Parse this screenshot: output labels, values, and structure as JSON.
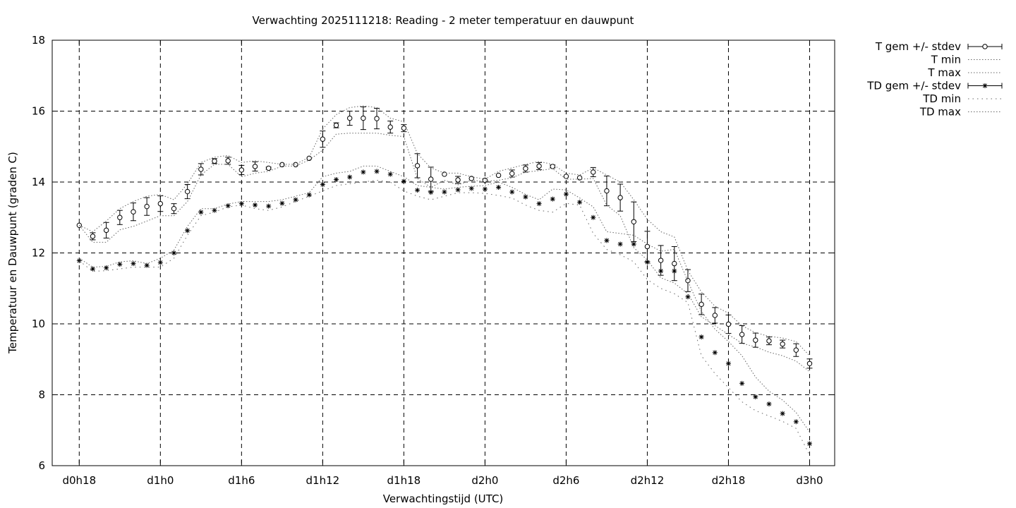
{
  "chart_data": {
    "type": "line",
    "title": "Verwachting 2025111218: Reading - 2 meter temperatuur en dauwpunt",
    "xlabel": "Verwachtingstijd (UTC)",
    "ylabel": "Temperatuur en Dauwpunt (graden C)",
    "xlim": [
      18,
      75
    ],
    "ylim": [
      6,
      18
    ],
    "x_ticks": [
      {
        "value": 18,
        "label": "d0h18"
      },
      {
        "value": 24,
        "label": "d1h0"
      },
      {
        "value": 30,
        "label": "d1h6"
      },
      {
        "value": 36,
        "label": "d1h12"
      },
      {
        "value": 42,
        "label": "d1h18"
      },
      {
        "value": 48,
        "label": "d2h0"
      },
      {
        "value": 54,
        "label": "d2h6"
      },
      {
        "value": 60,
        "label": "d2h12"
      },
      {
        "value": 66,
        "label": "d2h18"
      },
      {
        "value": 72,
        "label": "d3h0"
      }
    ],
    "y_ticks": [
      {
        "value": 6,
        "label": "6"
      },
      {
        "value": 8,
        "label": "8"
      },
      {
        "value": 10,
        "label": "10"
      },
      {
        "value": 12,
        "label": "12"
      },
      {
        "value": 14,
        "label": "14"
      },
      {
        "value": 16,
        "label": "16"
      },
      {
        "value": 18,
        "label": "18"
      }
    ],
    "grid": true,
    "legend_position": "outside-top-right",
    "x": [
      18,
      19,
      20,
      21,
      22,
      23,
      24,
      25,
      26,
      27,
      28,
      29,
      30,
      31,
      32,
      33,
      34,
      35,
      36,
      37,
      38,
      39,
      40,
      41,
      42,
      43,
      44,
      45,
      46,
      47,
      48,
      49,
      50,
      51,
      52,
      53,
      54,
      55,
      56,
      57,
      58,
      59,
      60,
      61,
      62,
      63,
      64,
      65,
      66,
      67,
      68,
      69,
      70,
      71,
      72
    ],
    "series": [
      {
        "name": "T gem +/- stdev",
        "marker": "circle",
        "values": [
          12.78,
          12.47,
          12.64,
          13.0,
          13.16,
          13.31,
          13.39,
          13.25,
          13.73,
          14.36,
          14.59,
          14.6,
          14.34,
          14.44,
          14.39,
          14.49,
          14.49,
          14.67,
          15.21,
          15.6,
          15.8,
          15.8,
          15.79,
          15.55,
          15.52,
          14.46,
          14.08,
          14.22,
          14.06,
          14.1,
          14.05,
          14.19,
          14.24,
          14.38,
          14.45,
          14.44,
          14.16,
          14.12,
          14.28,
          13.75,
          13.56,
          12.88,
          12.18,
          11.79,
          11.7,
          11.22,
          10.55,
          10.24,
          9.99,
          9.7,
          9.54,
          9.52,
          9.43,
          9.26,
          8.88
        ],
        "stdev": [
          0.0,
          0.1,
          0.22,
          0.2,
          0.25,
          0.25,
          0.22,
          0.14,
          0.2,
          0.16,
          0.07,
          0.1,
          0.13,
          0.13,
          0.03,
          0.0,
          0.0,
          0.0,
          0.23,
          0.07,
          0.2,
          0.32,
          0.29,
          0.17,
          0.1,
          0.34,
          0.34,
          0.0,
          0.1,
          0.0,
          0.0,
          0.0,
          0.1,
          0.1,
          0.1,
          0.04,
          0.0,
          0.0,
          0.13,
          0.42,
          0.38,
          0.56,
          0.43,
          0.42,
          0.48,
          0.31,
          0.29,
          0.22,
          0.26,
          0.25,
          0.2,
          0.11,
          0.11,
          0.18,
          0.13
        ]
      },
      {
        "name": "T min",
        "style": "dotted",
        "values": [
          12.78,
          12.3,
          12.3,
          12.65,
          12.75,
          12.9,
          13.05,
          13.05,
          13.45,
          14.2,
          14.5,
          14.5,
          14.15,
          14.25,
          14.3,
          14.45,
          14.45,
          14.62,
          14.9,
          15.35,
          15.38,
          15.38,
          15.38,
          15.32,
          15.28,
          14.1,
          13.85,
          14.05,
          13.92,
          14.05,
          14.02,
          14.05,
          14.12,
          14.28,
          14.32,
          14.38,
          14.08,
          14.08,
          14.1,
          13.35,
          13.05,
          12.15,
          11.8,
          11.3,
          11.15,
          10.85,
          10.2,
          9.95,
          9.7,
          9.45,
          9.35,
          9.2,
          9.1,
          8.95,
          8.65
        ]
      },
      {
        "name": "T max",
        "style": "dotted",
        "values": [
          12.78,
          12.6,
          12.9,
          13.25,
          13.45,
          13.6,
          13.65,
          13.5,
          13.95,
          14.55,
          14.7,
          14.75,
          14.55,
          14.6,
          14.55,
          14.5,
          14.5,
          14.7,
          15.5,
          15.9,
          16.1,
          16.15,
          16.1,
          15.8,
          15.7,
          14.8,
          14.4,
          14.25,
          14.25,
          14.15,
          14.08,
          14.3,
          14.4,
          14.5,
          14.58,
          14.5,
          14.25,
          14.2,
          14.4,
          14.2,
          14.0,
          13.5,
          12.95,
          12.6,
          12.45,
          11.5,
          10.9,
          10.5,
          10.3,
          9.95,
          9.75,
          9.65,
          9.6,
          9.5,
          9.1
        ]
      },
      {
        "name": "TD gem +/- stdev",
        "marker": "star",
        "values": [
          11.78,
          11.55,
          11.58,
          11.68,
          11.7,
          11.65,
          11.73,
          12.0,
          12.63,
          13.15,
          13.2,
          13.33,
          13.39,
          13.35,
          13.32,
          13.4,
          13.5,
          13.64,
          13.93,
          14.07,
          14.14,
          14.28,
          14.3,
          14.22,
          14.02,
          13.77,
          13.71,
          13.72,
          13.78,
          13.82,
          13.8,
          13.85,
          13.72,
          13.58,
          13.39,
          13.52,
          13.66,
          13.43,
          13.0,
          12.35,
          12.25,
          12.25,
          11.74,
          11.49,
          11.49,
          10.76,
          9.63,
          9.19,
          8.88,
          8.32,
          7.94,
          7.74,
          7.47,
          7.24,
          6.62
        ]
      },
      {
        "name": "TD min",
        "style": "dotted",
        "values": [
          11.78,
          11.48,
          11.5,
          11.55,
          11.6,
          11.6,
          11.6,
          11.85,
          12.5,
          13.05,
          13.15,
          13.3,
          13.35,
          13.25,
          13.2,
          13.3,
          13.45,
          13.6,
          13.75,
          13.9,
          13.95,
          14.0,
          14.05,
          14.0,
          13.75,
          13.6,
          13.5,
          13.6,
          13.7,
          13.7,
          13.68,
          13.62,
          13.55,
          13.35,
          13.2,
          13.15,
          13.4,
          13.35,
          12.55,
          12.1,
          11.95,
          11.75,
          11.25,
          11.0,
          10.85,
          10.6,
          9.1,
          8.6,
          8.2,
          7.8,
          7.55,
          7.4,
          7.25,
          7.05,
          6.3
        ]
      },
      {
        "name": "TD max",
        "style": "dotted",
        "values": [
          11.85,
          11.6,
          11.62,
          11.75,
          11.78,
          11.7,
          11.85,
          12.08,
          12.75,
          13.25,
          13.25,
          13.38,
          13.45,
          13.45,
          13.45,
          13.5,
          13.6,
          13.7,
          14.15,
          14.25,
          14.3,
          14.45,
          14.45,
          14.3,
          14.15,
          13.9,
          13.85,
          13.8,
          13.85,
          13.88,
          13.9,
          14.0,
          13.85,
          13.65,
          13.5,
          13.8,
          13.78,
          13.55,
          13.3,
          12.6,
          12.55,
          12.5,
          12.25,
          12.05,
          12.1,
          11.2,
          10.35,
          9.85,
          9.5,
          9.1,
          8.5,
          8.1,
          7.85,
          7.5,
          6.95
        ]
      }
    ]
  }
}
